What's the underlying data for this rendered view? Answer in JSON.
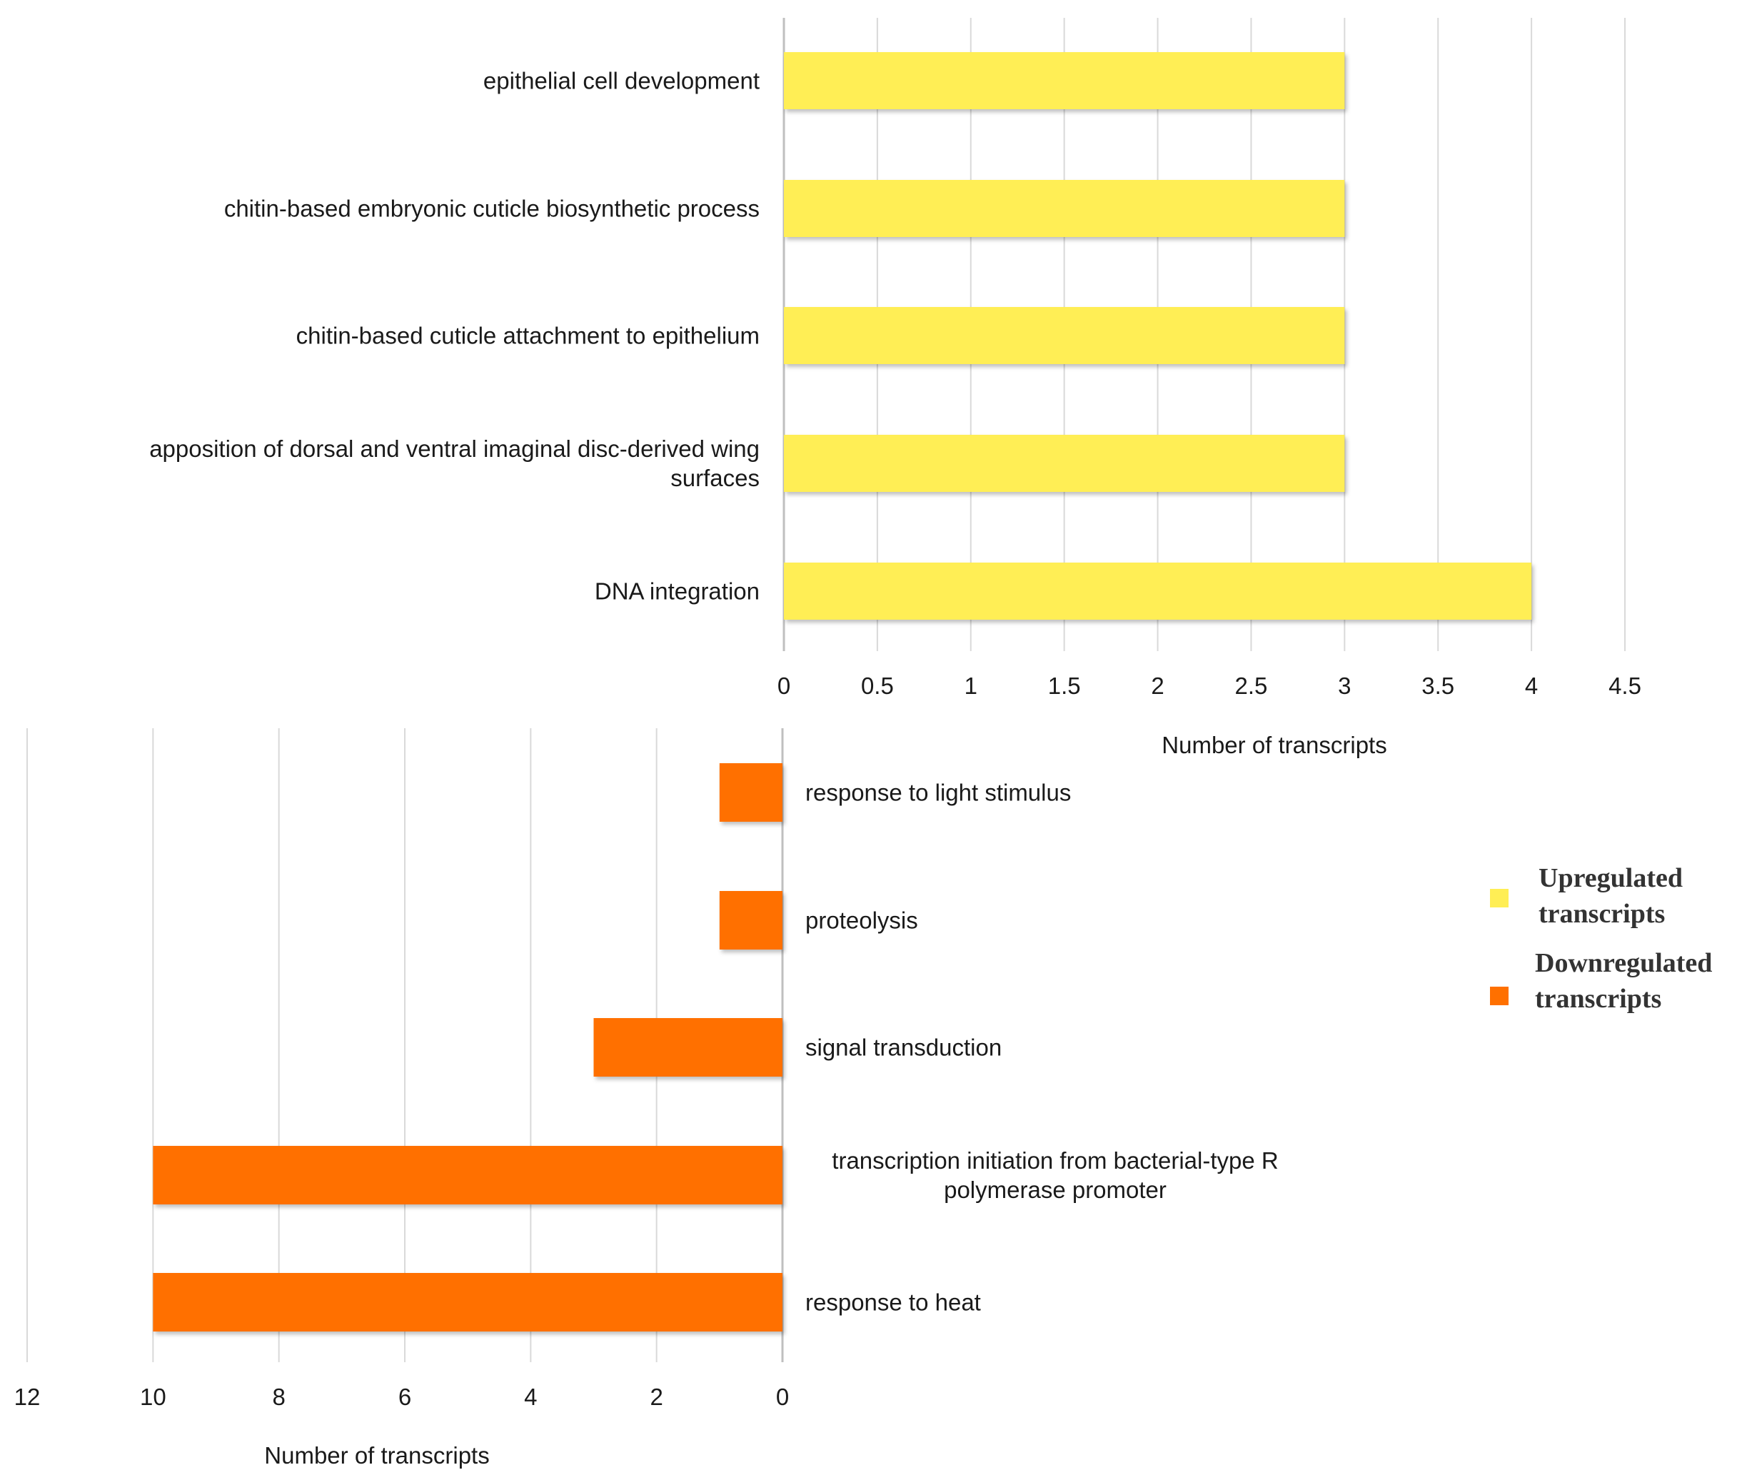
{
  "colors": {
    "upregulated": "#ffee55",
    "downregulated": "#ff7000",
    "grid": "#d9d9d9",
    "axis": "#bfbfbf",
    "text": "#1a1a1a"
  },
  "legend": {
    "items": [
      {
        "label_lines": [
          "Upregulated",
          "transcripts"
        ],
        "color": "#ffee55"
      },
      {
        "label_lines": [
          "Downregulated",
          "transcripts"
        ],
        "color": "#ff7000"
      }
    ]
  },
  "chart_data": [
    {
      "type": "bar",
      "orientation": "horizontal",
      "name": "Upregulated transcripts",
      "categories": [
        [
          "epithelial cell development"
        ],
        [
          "chitin-based embryonic cuticle biosynthetic process"
        ],
        [
          "chitin-based cuticle attachment to epithelium"
        ],
        [
          "apposition of dorsal and ventral imaginal disc-derived wing",
          "surfaces"
        ],
        [
          "DNA integration"
        ]
      ],
      "values": [
        3,
        3,
        3,
        3,
        4
      ],
      "xlim": [
        0,
        4.5
      ],
      "xticks": [
        "0",
        "0.5",
        "1",
        "1.5",
        "2",
        "2.5",
        "3",
        "3.5",
        "4",
        "4.5"
      ],
      "xlabel": "Number of transcripts",
      "color": "#ffee55",
      "label_side": "left",
      "grid": true
    },
    {
      "type": "bar",
      "orientation": "horizontal",
      "direction": "reversed",
      "name": "Downregulated transcripts",
      "categories": [
        [
          "response to light stimulus"
        ],
        [
          "proteolysis"
        ],
        [
          "signal transduction"
        ],
        [
          "transcription initiation from bacterial-type R",
          "polymerase promoter"
        ],
        [
          "response to heat"
        ]
      ],
      "values": [
        1,
        1,
        3,
        10,
        10
      ],
      "xlim": [
        0,
        12
      ],
      "xticks": [
        "12",
        "10",
        "8",
        "6",
        "4",
        "2",
        "0"
      ],
      "xlabel": "Number of transcripts",
      "color": "#ff7000",
      "label_side": "right",
      "grid": true
    }
  ]
}
